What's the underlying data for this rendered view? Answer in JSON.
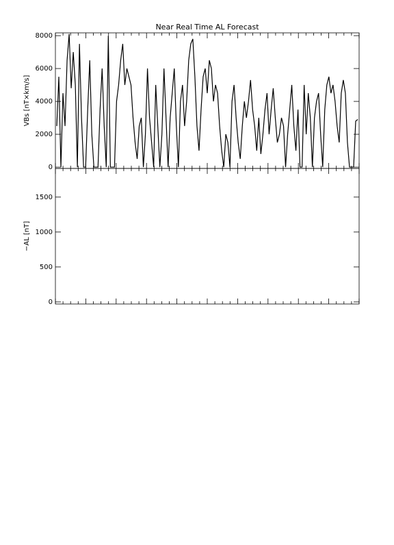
{
  "chart_data": [
    {
      "type": "line",
      "title": "Near Real Time AL Forecast",
      "ylabel": "VBs [nT×km/s]",
      "color": "#000000",
      "ylim": [
        -80,
        8170
      ],
      "yticks": [
        0,
        2000,
        4000,
        6000,
        8000
      ],
      "values": [
        2500,
        5500,
        0,
        4500,
        2500,
        6500,
        8100,
        4800,
        7000,
        5000,
        0,
        7500,
        3000,
        0,
        0,
        3500,
        6500,
        2000,
        0,
        0,
        0,
        3500,
        6000,
        2500,
        0,
        8000,
        0,
        0,
        0,
        4000,
        5000,
        6500,
        7500,
        5000,
        6000,
        5500,
        5000,
        3000,
        1500,
        500,
        2500,
        3000,
        0,
        2000,
        6000,
        3000,
        1500,
        0,
        5000,
        2500,
        0,
        2000,
        6000,
        3000,
        0,
        3000,
        4500,
        6000,
        2500,
        0,
        4000,
        5000,
        2500,
        4000,
        6500,
        7500,
        7800,
        5500,
        2500,
        1000,
        3500,
        5500,
        6000,
        4500,
        6500,
        6000,
        4000,
        5000,
        4500,
        2500,
        1000,
        0,
        2000,
        1500,
        0,
        4000,
        5000,
        3000,
        1500,
        500,
        2500,
        4000,
        3000,
        4000,
        5300,
        3500,
        2500,
        1000,
        3000,
        800,
        2000,
        3500,
        4500,
        2000,
        3500,
        4800,
        3000,
        1500,
        2000,
        3000,
        2500,
        0,
        2000,
        3500,
        5000,
        2500,
        1000,
        3500,
        0,
        0,
        5000,
        2000,
        4500,
        3000,
        0,
        3000,
        4000,
        4500,
        2000,
        0,
        3500,
        5000,
        5500,
        4500,
        5000,
        4000,
        2500,
        1500,
        4500,
        5300,
        4500,
        1500,
        0,
        0,
        0,
        2800,
        2900
      ]
    },
    {
      "type": "line",
      "ylabel": "−AL [nT]",
      "ylim": [
        -30,
        1910
      ],
      "yticks": [
        0,
        500,
        1000,
        1500
      ]
    }
  ]
}
